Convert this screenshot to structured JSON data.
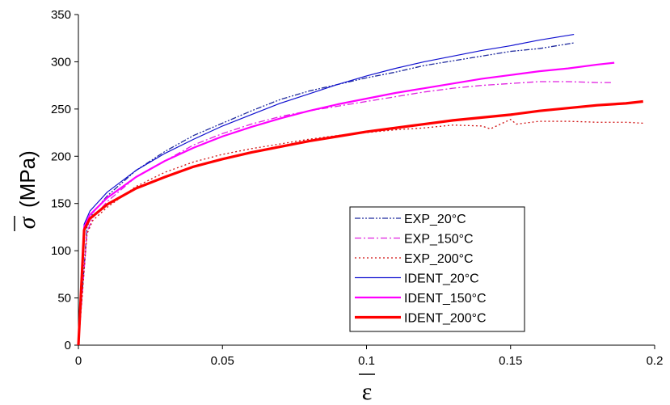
{
  "chart_data": {
    "type": "line",
    "xlabel": "ε",
    "ylabel_symbol": "σ",
    "ylabel_unit": "(MPa)",
    "xlim": [
      0,
      0.2
    ],
    "ylim": [
      0,
      350
    ],
    "x_ticks": [
      0,
      0.05,
      0.1,
      0.15,
      0.2
    ],
    "x_tick_labels": [
      "0",
      "0.05",
      "0.1",
      "0.15",
      "0.2"
    ],
    "y_ticks": [
      0,
      50,
      100,
      150,
      200,
      250,
      300,
      350
    ],
    "y_tick_labels": [
      "0",
      "50",
      "100",
      "150",
      "200",
      "250",
      "300",
      "350"
    ],
    "grid": false,
    "legend_position": "lower-right",
    "series": [
      {
        "name": "EXP_20°C",
        "color": "#1f2a9e",
        "style": "dash-dot-dot",
        "width": 1.3,
        "points": [
          [
            0,
            0
          ],
          [
            0.003,
            125
          ],
          [
            0.005,
            140
          ],
          [
            0.01,
            158
          ],
          [
            0.02,
            185
          ],
          [
            0.03,
            205
          ],
          [
            0.04,
            222
          ],
          [
            0.05,
            235
          ],
          [
            0.06,
            248
          ],
          [
            0.07,
            260
          ],
          [
            0.08,
            269
          ],
          [
            0.09,
            276
          ],
          [
            0.1,
            283
          ],
          [
            0.11,
            289
          ],
          [
            0.12,
            296
          ],
          [
            0.13,
            301
          ],
          [
            0.14,
            306
          ],
          [
            0.15,
            311
          ],
          [
            0.16,
            314
          ],
          [
            0.17,
            319
          ],
          [
            0.172,
            320
          ]
        ]
      },
      {
        "name": "EXP_150°C",
        "color": "#e020e0",
        "style": "dash-dot",
        "width": 1.3,
        "points": [
          [
            0,
            0
          ],
          [
            0.003,
            120
          ],
          [
            0.005,
            135
          ],
          [
            0.01,
            152
          ],
          [
            0.02,
            178
          ],
          [
            0.03,
            195
          ],
          [
            0.04,
            212
          ],
          [
            0.05,
            224
          ],
          [
            0.06,
            234
          ],
          [
            0.07,
            242
          ],
          [
            0.08,
            248
          ],
          [
            0.09,
            253
          ],
          [
            0.1,
            258
          ],
          [
            0.11,
            263
          ],
          [
            0.12,
            268
          ],
          [
            0.13,
            272
          ],
          [
            0.14,
            275
          ],
          [
            0.15,
            277
          ],
          [
            0.16,
            279
          ],
          [
            0.17,
            279
          ],
          [
            0.18,
            278
          ],
          [
            0.185,
            278
          ]
        ]
      },
      {
        "name": "EXP_200°C",
        "color": "#d01010",
        "style": "dotted",
        "width": 1.3,
        "points": [
          [
            0,
            0
          ],
          [
            0.003,
            118
          ],
          [
            0.005,
            132
          ],
          [
            0.01,
            146
          ],
          [
            0.02,
            168
          ],
          [
            0.03,
            183
          ],
          [
            0.04,
            194
          ],
          [
            0.05,
            202
          ],
          [
            0.06,
            208
          ],
          [
            0.07,
            213
          ],
          [
            0.08,
            218
          ],
          [
            0.09,
            222
          ],
          [
            0.1,
            225
          ],
          [
            0.11,
            228
          ],
          [
            0.12,
            230
          ],
          [
            0.13,
            233
          ],
          [
            0.14,
            232
          ],
          [
            0.143,
            229
          ],
          [
            0.15,
            239
          ],
          [
            0.152,
            234
          ],
          [
            0.16,
            237
          ],
          [
            0.17,
            237
          ],
          [
            0.18,
            236
          ],
          [
            0.19,
            236
          ],
          [
            0.196,
            235
          ]
        ]
      },
      {
        "name": "IDENT_20°C",
        "color": "#1010d0",
        "style": "solid",
        "width": 1.2,
        "points": [
          [
            0,
            0
          ],
          [
            0.002,
            128
          ],
          [
            0.004,
            142
          ],
          [
            0.01,
            162
          ],
          [
            0.02,
            185
          ],
          [
            0.03,
            203
          ],
          [
            0.04,
            218
          ],
          [
            0.05,
            232
          ],
          [
            0.06,
            244
          ],
          [
            0.07,
            256
          ],
          [
            0.08,
            266
          ],
          [
            0.09,
            276
          ],
          [
            0.1,
            285
          ],
          [
            0.11,
            293
          ],
          [
            0.12,
            300
          ],
          [
            0.13,
            306
          ],
          [
            0.14,
            312
          ],
          [
            0.15,
            317
          ],
          [
            0.16,
            323
          ],
          [
            0.172,
            329
          ]
        ]
      },
      {
        "name": "IDENT_150°C",
        "color": "#ff00ff",
        "style": "solid",
        "width": 2.2,
        "points": [
          [
            0,
            0
          ],
          [
            0.002,
            125
          ],
          [
            0.004,
            138
          ],
          [
            0.01,
            156
          ],
          [
            0.02,
            178
          ],
          [
            0.03,
            195
          ],
          [
            0.04,
            209
          ],
          [
            0.05,
            221
          ],
          [
            0.06,
            231
          ],
          [
            0.07,
            240
          ],
          [
            0.08,
            248
          ],
          [
            0.09,
            255
          ],
          [
            0.1,
            261
          ],
          [
            0.11,
            267
          ],
          [
            0.12,
            272
          ],
          [
            0.13,
            277
          ],
          [
            0.14,
            282
          ],
          [
            0.15,
            286
          ],
          [
            0.16,
            290
          ],
          [
            0.17,
            293
          ],
          [
            0.18,
            297
          ],
          [
            0.186,
            299
          ]
        ]
      },
      {
        "name": "IDENT_200°C",
        "color": "#ff0000",
        "style": "solid",
        "width": 3.2,
        "points": [
          [
            0,
            0
          ],
          [
            0.002,
            122
          ],
          [
            0.004,
            134
          ],
          [
            0.01,
            149
          ],
          [
            0.02,
            166
          ],
          [
            0.03,
            178
          ],
          [
            0.04,
            189
          ],
          [
            0.05,
            197
          ],
          [
            0.06,
            204
          ],
          [
            0.07,
            210
          ],
          [
            0.08,
            216
          ],
          [
            0.09,
            221
          ],
          [
            0.1,
            226
          ],
          [
            0.11,
            230
          ],
          [
            0.12,
            234
          ],
          [
            0.13,
            238
          ],
          [
            0.14,
            241
          ],
          [
            0.15,
            244
          ],
          [
            0.16,
            248
          ],
          [
            0.17,
            251
          ],
          [
            0.18,
            254
          ],
          [
            0.19,
            256
          ],
          [
            0.196,
            258
          ]
        ]
      }
    ]
  }
}
